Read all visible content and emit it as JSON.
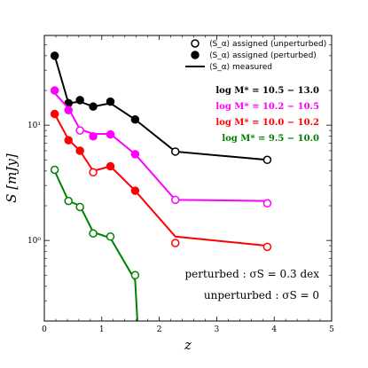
{
  "chart_data": {
    "type": "line",
    "xlabel": "z",
    "ylabel": "S [mJy]",
    "xlim": [
      0,
      5
    ],
    "ylim": [
      0.2,
      60
    ],
    "yscale": "log",
    "x_ticks": [
      "0",
      "1",
      "2",
      "3",
      "4",
      "5"
    ],
    "y_ticks": [
      {
        "value": 1,
        "label": "10⁰"
      },
      {
        "value": 10,
        "label": "10¹"
      }
    ],
    "legend": {
      "position": "top-right",
      "items": [
        {
          "marker": "open-circle",
          "label": "⟨S_α⟩ assigned (unperturbed)"
        },
        {
          "marker": "filled-circle",
          "label": "⟨S_α⟩ assigned (perturbed)"
        },
        {
          "marker": "line",
          "label": "⟨S_α⟩ measured"
        }
      ]
    },
    "mass_labels": [
      {
        "text": "log M* = 10.5 − 13.0",
        "color": "#000000"
      },
      {
        "text": "log M* = 10.2 − 10.5",
        "color": "#ff00ff"
      },
      {
        "text": "log M* = 10.0 − 10.2",
        "color": "#ff0000"
      },
      {
        "text": "log M* = 9.5 − 10.0",
        "color": "#008000"
      }
    ],
    "annotations": [
      "perturbed : σS = 0.3 dex",
      "unperturbed : σS = 0"
    ],
    "series": [
      {
        "color": "#000000",
        "line": {
          "x": [
            0.18,
            0.42,
            0.62,
            0.85,
            1.15,
            1.58,
            2.28,
            3.88
          ],
          "y": [
            40,
            15.5,
            16,
            14.5,
            15.5,
            11.2,
            5.9,
            5.0
          ]
        },
        "points": [
          {
            "x": 0.18,
            "y": 40,
            "filled": true
          },
          {
            "x": 0.42,
            "y": 15.5,
            "filled": true
          },
          {
            "x": 0.62,
            "y": 16.5,
            "filled": true
          },
          {
            "x": 0.85,
            "y": 14.5,
            "filled": true
          },
          {
            "x": 1.15,
            "y": 16.0,
            "filled": true
          },
          {
            "x": 1.58,
            "y": 11.2,
            "filled": true
          },
          {
            "x": 2.28,
            "y": 5.9,
            "filled": false
          },
          {
            "x": 3.88,
            "y": 5.0,
            "filled": false
          }
        ]
      },
      {
        "color": "#ff00ff",
        "line": {
          "x": [
            0.18,
            0.42,
            0.62,
            0.85,
            1.15,
            1.58,
            2.28,
            3.88
          ],
          "y": [
            19,
            14,
            9.2,
            8.4,
            8.4,
            5.6,
            2.25,
            2.2
          ]
        },
        "points": [
          {
            "x": 0.18,
            "y": 20,
            "filled": true
          },
          {
            "x": 0.42,
            "y": 13.5,
            "filled": true
          },
          {
            "x": 0.62,
            "y": 9.0,
            "filled": false
          },
          {
            "x": 0.85,
            "y": 8.0,
            "filled": true
          },
          {
            "x": 1.15,
            "y": 8.3,
            "filled": true
          },
          {
            "x": 1.58,
            "y": 5.6,
            "filled": true
          },
          {
            "x": 2.28,
            "y": 2.25,
            "filled": false
          },
          {
            "x": 3.88,
            "y": 2.1,
            "filled": false
          }
        ]
      },
      {
        "color": "#ff0000",
        "line": {
          "x": [
            0.18,
            0.42,
            0.62,
            0.85,
            1.15,
            1.58,
            2.28,
            3.88
          ],
          "y": [
            12.5,
            7.5,
            6.0,
            4.0,
            4.4,
            2.7,
            1.08,
            0.9
          ]
        },
        "points": [
          {
            "x": 0.18,
            "y": 12.5,
            "filled": true
          },
          {
            "x": 0.42,
            "y": 7.4,
            "filled": true
          },
          {
            "x": 0.62,
            "y": 6.0,
            "filled": true
          },
          {
            "x": 0.85,
            "y": 3.9,
            "filled": false
          },
          {
            "x": 1.15,
            "y": 4.4,
            "filled": true
          },
          {
            "x": 1.58,
            "y": 2.7,
            "filled": true
          },
          {
            "x": 2.28,
            "y": 0.95,
            "filled": false
          },
          {
            "x": 3.88,
            "y": 0.88,
            "filled": false
          }
        ]
      },
      {
        "color": "#008000",
        "line": {
          "x": [
            0.18,
            0.42,
            0.62,
            0.85,
            1.15,
            1.58,
            1.62
          ],
          "y": [
            4.0,
            2.2,
            2.0,
            1.18,
            1.05,
            0.45,
            0.2
          ]
        },
        "points": [
          {
            "x": 0.18,
            "y": 4.1,
            "filled": false
          },
          {
            "x": 0.42,
            "y": 2.2,
            "filled": false
          },
          {
            "x": 0.62,
            "y": 1.95,
            "filled": false
          },
          {
            "x": 0.85,
            "y": 1.15,
            "filled": false
          },
          {
            "x": 1.15,
            "y": 1.08,
            "filled": false
          },
          {
            "x": 1.58,
            "y": 0.5,
            "filled": false
          }
        ]
      }
    ]
  }
}
